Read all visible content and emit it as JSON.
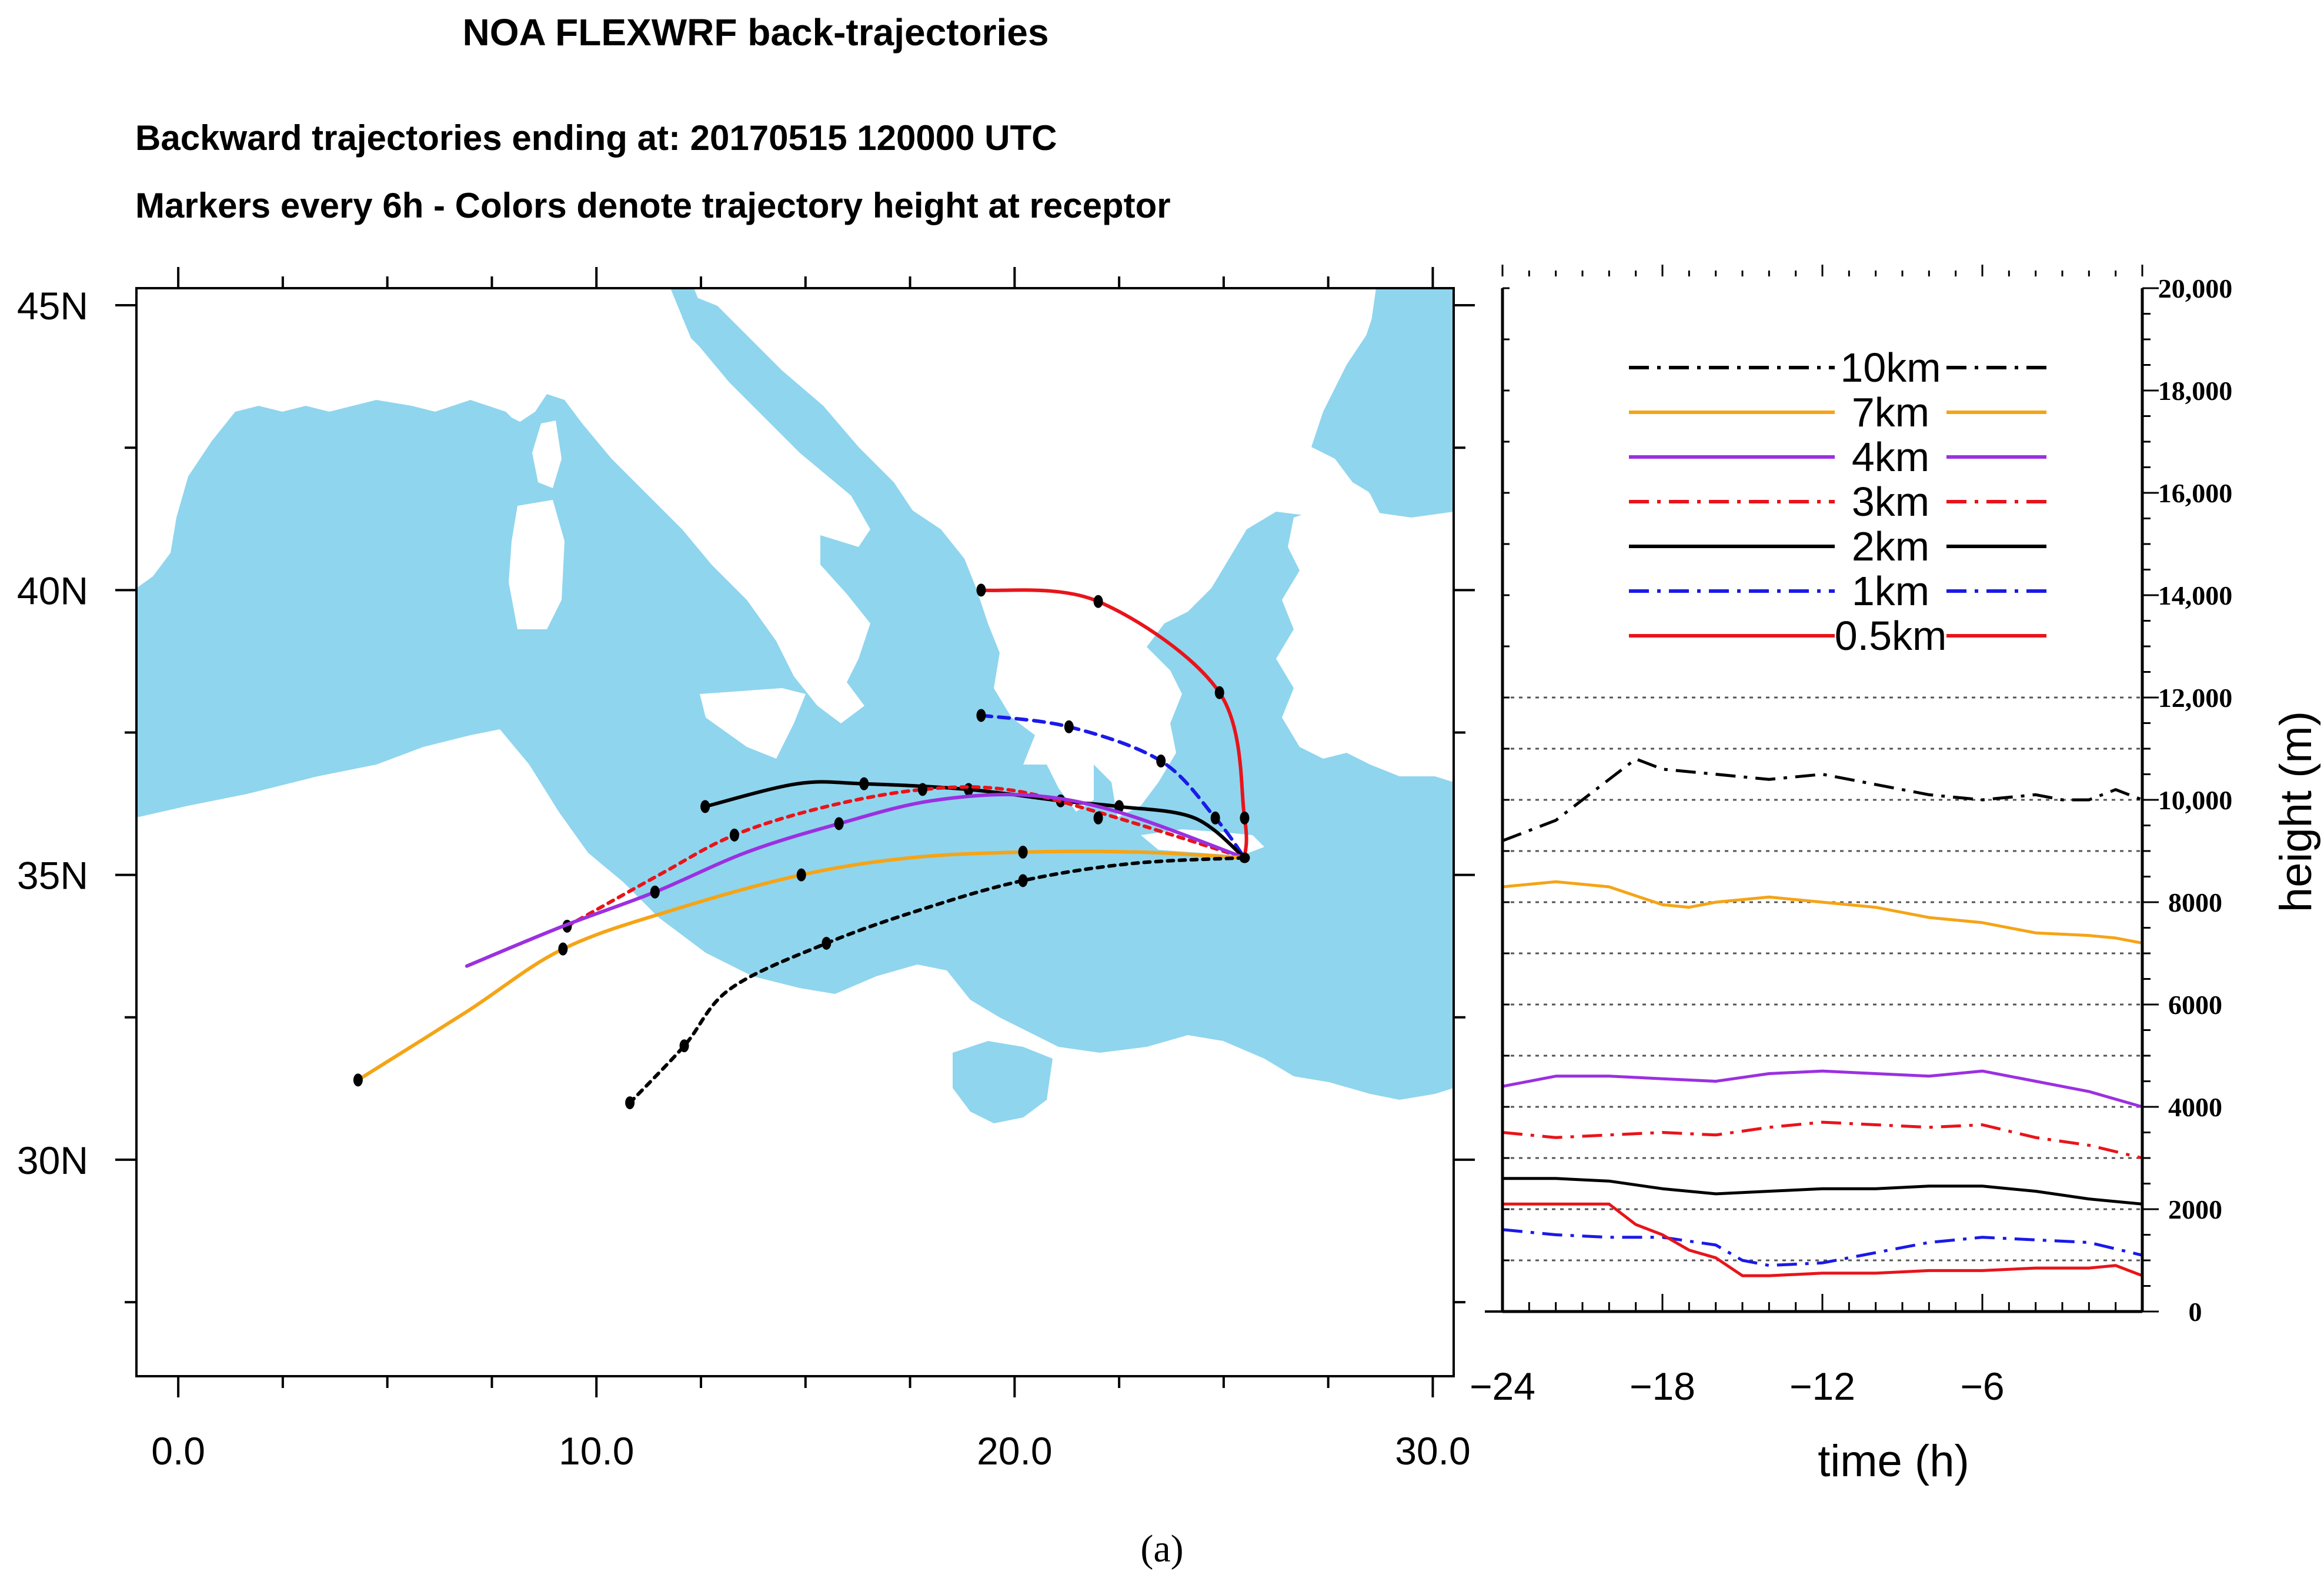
{
  "titles": {
    "main": "NOA FLEXWRF back-trajectories",
    "line1": "Backward trajectories ending at: 20170515  120000 UTC",
    "line2": "Markers every 6h - Colors denote trajectory height at receptor"
  },
  "caption": "(a)",
  "chart_data": [
    {
      "type": "line",
      "name": "map",
      "xlim": [
        -1,
        30.5
      ],
      "ylim": [
        26.2,
        45.3
      ],
      "x_ticks": [
        0,
        10,
        20,
        30
      ],
      "x_tick_labels": [
        "0.0",
        "10.0",
        "20.0",
        "30.0"
      ],
      "y_ticks": [
        30,
        35,
        40,
        45
      ],
      "y_tick_labels": [
        "30N",
        "35N",
        "40N",
        "45N"
      ],
      "receptor": [
        25.5,
        35.3
      ],
      "colors": {
        "sea": "#8fd5ee",
        "land": "#ffffff"
      },
      "series": [
        {
          "name": "0.5km",
          "color": "#e8141a",
          "dash": "solid",
          "points": [
            [
              19.2,
              40.0
            ],
            [
              22.0,
              39.8
            ],
            [
              24.9,
              38.2
            ],
            [
              25.5,
              36.0
            ],
            [
              25.5,
              35.3
            ]
          ],
          "markers": [
            [
              19.2,
              40.0
            ],
            [
              22.0,
              39.8
            ],
            [
              24.9,
              38.2
            ],
            [
              25.5,
              36.0
            ]
          ]
        },
        {
          "name": "1km",
          "color": "#1a1ae8",
          "dash": "dash",
          "points": [
            [
              19.2,
              37.8
            ],
            [
              21.3,
              37.6
            ],
            [
              23.5,
              37.0
            ],
            [
              24.8,
              36.0
            ],
            [
              25.5,
              35.3
            ]
          ],
          "markers": [
            [
              19.2,
              37.8
            ],
            [
              21.3,
              37.6
            ],
            [
              23.5,
              37.0
            ],
            [
              24.8,
              36.0
            ]
          ]
        },
        {
          "name": "2km",
          "color": "#000000",
          "dash": "solid",
          "points": [
            [
              12.6,
              36.2
            ],
            [
              14.8,
              36.6
            ],
            [
              16.4,
              36.6
            ],
            [
              18.9,
              36.5
            ],
            [
              21.1,
              36.3
            ],
            [
              22.5,
              36.2
            ],
            [
              24.3,
              36.0
            ],
            [
              25.5,
              35.3
            ]
          ],
          "markers": [
            [
              12.6,
              36.2
            ],
            [
              16.4,
              36.6
            ],
            [
              18.9,
              36.5
            ],
            [
              21.1,
              36.3
            ],
            [
              22.5,
              36.2
            ]
          ]
        },
        {
          "name": "3km",
          "color": "#e8141a",
          "dash": "dot",
          "points": [
            [
              9.3,
              34.1
            ],
            [
              11.5,
              35.0
            ],
            [
              13.3,
              35.7
            ],
            [
              15.5,
              36.2
            ],
            [
              17.8,
              36.5
            ],
            [
              19.8,
              36.5
            ],
            [
              22.0,
              36.1
            ],
            [
              25.5,
              35.3
            ]
          ],
          "markers": [
            [
              9.3,
              34.1
            ],
            [
              13.3,
              35.7
            ],
            [
              17.8,
              36.5
            ],
            [
              22.0,
              36.0
            ]
          ]
        },
        {
          "name": "4km",
          "color": "#9b30e0",
          "dash": "solid",
          "points": [
            [
              6.9,
              33.4
            ],
            [
              9.2,
              34.1
            ],
            [
              11.4,
              34.7
            ],
            [
              13.6,
              35.4
            ],
            [
              15.8,
              35.9
            ],
            [
              18.0,
              36.3
            ],
            [
              20.3,
              36.4
            ],
            [
              22.5,
              36.1
            ],
            [
              25.5,
              35.3
            ]
          ],
          "markers": [
            [
              11.4,
              34.7
            ],
            [
              15.8,
              35.9
            ]
          ]
        },
        {
          "name": "7km",
          "color": "#f5a416",
          "dash": "solid",
          "points": [
            [
              4.3,
              31.4
            ],
            [
              6.9,
              32.6
            ],
            [
              9.2,
              33.7
            ],
            [
              11.9,
              34.4
            ],
            [
              14.9,
              35.0
            ],
            [
              17.5,
              35.3
            ],
            [
              20.2,
              35.4
            ],
            [
              23.0,
              35.4
            ],
            [
              25.5,
              35.3
            ]
          ],
          "markers": [
            [
              4.3,
              31.4
            ],
            [
              9.2,
              33.7
            ],
            [
              14.9,
              35.0
            ],
            [
              20.2,
              35.4
            ]
          ]
        },
        {
          "name": "10km",
          "color": "#000000",
          "dash": "dot",
          "points": [
            [
              10.8,
              31.0
            ],
            [
              12.1,
              32.0
            ],
            [
              13.2,
              33.0
            ],
            [
              15.5,
              33.8
            ],
            [
              17.8,
              34.4
            ],
            [
              20.2,
              34.9
            ],
            [
              22.8,
              35.2
            ],
            [
              25.5,
              35.3
            ]
          ],
          "markers": [
            [
              10.8,
              31.0
            ],
            [
              12.1,
              32.0
            ],
            [
              15.5,
              33.8
            ],
            [
              20.2,
              34.9
            ]
          ]
        }
      ]
    },
    {
      "type": "line",
      "name": "height profile",
      "xlabel": "time (h)",
      "ylabel": "height (m)",
      "xlim": [
        -24,
        0
      ],
      "ylim": [
        0,
        20000
      ],
      "x_ticks": [
        -24,
        -18,
        -12,
        -6
      ],
      "x_tick_labels": [
        "−24",
        "−18",
        "−12",
        "−6"
      ],
      "y_ticks": [
        0,
        2000,
        4000,
        6000,
        8000,
        10000,
        12000,
        14000,
        16000,
        18000,
        20000
      ],
      "y_tick_labels": [
        "0",
        "2000",
        "4000",
        "6000",
        "8000",
        "10,000",
        "12,000",
        "14,000",
        "16,000",
        "18,000",
        "20,000"
      ],
      "grid_y": [
        1000,
        2000,
        3000,
        4000,
        5000,
        6000,
        7000,
        8000,
        9000,
        10000,
        11000,
        12000
      ],
      "legend_position": "top",
      "series": [
        {
          "name": "10km",
          "color": "#000000",
          "dash": "dashdot",
          "x": [
            -24,
            -22,
            -20,
            -19,
            -18,
            -16,
            -14,
            -12,
            -10,
            -8,
            -6,
            -4,
            -3,
            -2,
            -1,
            0
          ],
          "y": [
            9200,
            9600,
            10400,
            10800,
            10600,
            10500,
            10400,
            10500,
            10300,
            10100,
            10000,
            10100,
            10000,
            10000,
            10200,
            10000
          ]
        },
        {
          "name": "7km",
          "color": "#f5a416",
          "dash": "solid",
          "x": [
            -24,
            -22,
            -20,
            -18,
            -17,
            -16,
            -14,
            -12,
            -10,
            -8,
            -6,
            -4,
            -2,
            -1,
            0
          ],
          "y": [
            8300,
            8400,
            8300,
            7950,
            7900,
            8000,
            8100,
            8000,
            7900,
            7700,
            7600,
            7400,
            7350,
            7300,
            7200
          ]
        },
        {
          "name": "4km",
          "color": "#9b30e0",
          "dash": "solid",
          "x": [
            -24,
            -22,
            -20,
            -18,
            -16,
            -14,
            -12,
            -10,
            -8,
            -6,
            -4,
            -2,
            0
          ],
          "y": [
            4400,
            4600,
            4600,
            4550,
            4500,
            4650,
            4700,
            4650,
            4600,
            4700,
            4500,
            4300,
            4000
          ]
        },
        {
          "name": "3km",
          "color": "#e8141a",
          "dash": "dashdot",
          "x": [
            -24,
            -22,
            -20,
            -18,
            -16,
            -14,
            -12,
            -10,
            -8,
            -6,
            -4,
            -2,
            0
          ],
          "y": [
            3500,
            3400,
            3450,
            3500,
            3450,
            3600,
            3700,
            3650,
            3600,
            3650,
            3400,
            3250,
            3000
          ]
        },
        {
          "name": "2km",
          "color": "#000000",
          "dash": "solid",
          "x": [
            -24,
            -22,
            -20,
            -18,
            -16,
            -14,
            -12,
            -10,
            -8,
            -6,
            -4,
            -2,
            0
          ],
          "y": [
            2600,
            2600,
            2550,
            2400,
            2300,
            2350,
            2400,
            2400,
            2450,
            2450,
            2350,
            2200,
            2100
          ]
        },
        {
          "name": "1km",
          "color": "#1a1ae8",
          "dash": "dashdot",
          "x": [
            -24,
            -22,
            -20,
            -18,
            -16,
            -15,
            -14,
            -12,
            -10,
            -8,
            -6,
            -4,
            -2,
            0
          ],
          "y": [
            1600,
            1500,
            1450,
            1450,
            1300,
            1000,
            900,
            950,
            1150,
            1350,
            1450,
            1400,
            1350,
            1100
          ]
        },
        {
          "name": "0.5km",
          "color": "#e8141a",
          "dash": "solid",
          "x": [
            -24,
            -21,
            -20,
            -19,
            -18,
            -17,
            -16,
            -15,
            -14,
            -12,
            -10,
            -8,
            -6,
            -4,
            -2,
            -1,
            0
          ],
          "y": [
            2100,
            2100,
            2100,
            1700,
            1500,
            1200,
            1050,
            700,
            700,
            750,
            750,
            800,
            800,
            850,
            850,
            900,
            700
          ]
        }
      ]
    }
  ]
}
